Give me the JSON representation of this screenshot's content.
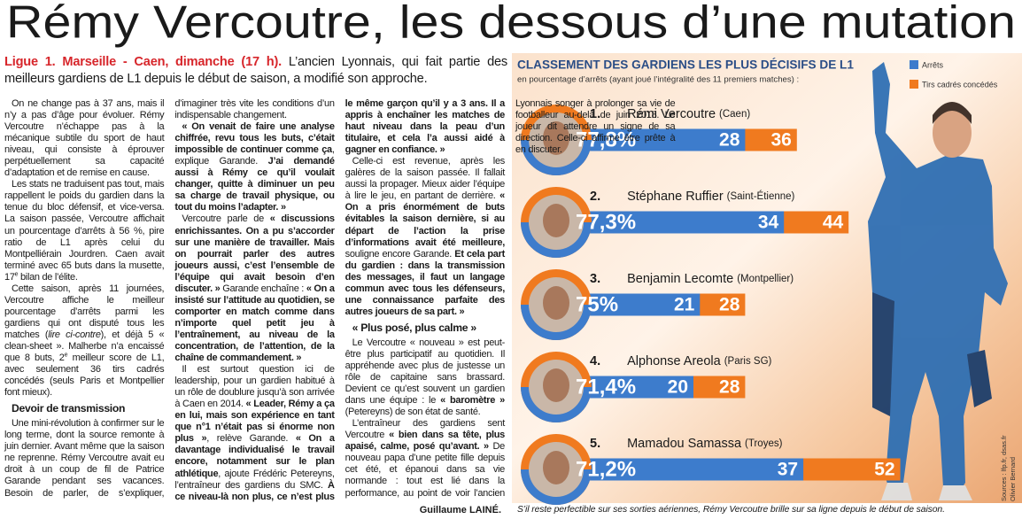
{
  "title": "Rémy Vercoutre, les dessous d’une mutation",
  "lead": {
    "kicker": "Ligue 1. Marseille - Caen, dimanche (17 h).",
    "text": "L’ancien Lyonnais, qui fait partie des meilleurs gardiens de L1 depuis le début de saison, a modifié son approche."
  },
  "article": {
    "blocks": [
      {
        "runs": [
          {
            "text": "On ne change pas à 37 ans, mais il n’y a pas d’âge pour évoluer. Rémy Vercoutre n’échappe pas à la mécanique subtile du sport de haut niveau, qui consiste à éprouver perpétuellement sa capacité d’adaptation et de remise en cause."
          }
        ]
      },
      {
        "runs": [
          {
            "text": "Les stats ne traduisent pas tout, mais rappellent le poids du gardien dans la tenue du bloc défensif, et vice-versa. La saison passée, Vercoutre affichait un pourcentage d’arrêts à 56 %, pire ratio de L1 après celui du Montpelliérain Jourdren. Caen avait terminé avec 65 buts dans la musette, 17"
          },
          {
            "text": "e",
            "sup": true
          },
          {
            "text": " bilan de l’élite."
          }
        ]
      },
      {
        "runs": [
          {
            "text": "Cette saison, après 11 journées, Vercoutre affiche le meilleur pourcentage d’arrêts parmi les gardiens qui ont disputé tous les matches ("
          },
          {
            "text": "lire ci-contre",
            "italic": true
          },
          {
            "text": "), et déjà 5 « clean-sheet ». Malherbe n’a encaissé que 8 buts, 2"
          },
          {
            "text": "e",
            "sup": true
          },
          {
            "text": " meilleur score de L1, avec seulement 36 tirs cadrés concédés (seuls Paris et Montpellier font mieux)."
          }
        ]
      },
      {
        "heading": "Devoir de transmission"
      },
      {
        "runs": [
          {
            "text": "Une mini-révolution à confirmer sur le long terme, dont la source remonte à juin dernier. Avant même que la saison ne reprenne. Rémy Vercoutre avait eu droit à un coup de fil de Patrice Garande pendant ses vacances. Besoin de parler, de s’expliquer, d’imaginer très vite les conditions d’un indispensable changement."
          }
        ]
      },
      {
        "runs": [
          {
            "text": "« On venait de faire une analyse chiffrée, revu tous les buts, c’était impossible de continuer comme ça",
            "bold": true
          },
          {
            "text": ", explique Garande. "
          },
          {
            "text": "J’ai demandé aussi à Rémy ce qu’il voulait changer, quitte à diminuer un peu sa charge de travail physique, ou tout du moins l’adapter. »",
            "bold": true
          }
        ]
      },
      {
        "runs": [
          {
            "text": "Vercoutre parle de "
          },
          {
            "text": "« discussions enrichissantes. On a pu s’accorder sur une manière de travailler. Mais on pourrait parler des autres joueurs aussi, c’est l’ensemble de l’équipe qui avait besoin d’en discuter. »",
            "bold": true
          },
          {
            "text": " Garande enchaîne : "
          },
          {
            "text": "« On a insisté sur l’attitude au quotidien, se comporter en match comme dans n’importe quel petit jeu à l’entraînement, au niveau de la concentration, de l’attention, de la chaîne de commandement. »",
            "bold": true
          }
        ]
      },
      {
        "runs": [
          {
            "text": "Il est surtout question ici de leadership, pour un gardien habitué à un rôle de doublure jusqu’à son arrivée à Caen en 2014. "
          },
          {
            "text": "« Leader, Rémy a ça en lui, mais son expérience en tant que n°1 n’était pas si énorme non plus »",
            "bold": true
          },
          {
            "text": ", relève Garande. "
          },
          {
            "text": "« On a davantage individualisé le travail encore, notamment sur le plan athlétique",
            "bold": true
          },
          {
            "text": ", ajoute Frédéric Petereyns, l’entraîneur des gardiens du SMC. "
          },
          {
            "text": "À ce niveau-là non plus, ce n’est plus le même garçon qu’il y a 3 ans. Il a appris à enchaîner les matches de haut niveau dans la peau d’un titulaire, et cela l’a aussi aidé à gagner en confiance. »",
            "bold": true
          }
        ]
      },
      {
        "runs": [
          {
            "text": "Celle-ci est revenue, après les galères de la saison passée. Il fallait aussi la propager. Mieux aider l’équipe à lire le jeu, en partant de derrière. "
          },
          {
            "text": "« On a pris énormément de buts évitables la saison dernière, si au départ de l’action la prise d’informations avait été meilleure,",
            "bold": true
          },
          {
            "text": " souligne encore Garande. "
          },
          {
            "text": "Et cela part du gardien : dans la transmission des messages, il faut un langage commun avec tous les défenseurs, une connaissance parfaite des autres joueurs de sa part. »",
            "bold": true
          }
        ]
      },
      {
        "heading": "« Plus posé, plus calme »"
      },
      {
        "runs": [
          {
            "text": "Le Vercoutre « nouveau » est peut-être plus participatif au quotidien. Il appréhende avec plus de justesse un rôle de capitaine sans brassard. Devient ce qu’est souvent un gardien dans une équipe : le "
          },
          {
            "text": "« baromètre »",
            "bold": true
          },
          {
            "text": " (Petereyns) de son état de santé."
          }
        ]
      },
      {
        "runs": [
          {
            "text": "L’entraîneur des gardiens sent Vercoutre "
          },
          {
            "text": "« bien dans sa tête, plus apaisé, calme, posé qu’avant. »",
            "bold": true
          },
          {
            "text": " De nouveau papa d’une petite fille depuis cet été, et épanoui dans sa vie normande : tout est lié dans la performance, au point de voir l’ancien Lyonnais songer à prolonger sa vie de footballeur au-delà de juin 2018. Le joueur dit attendre un signe de sa direction. Celle-ci affirme être prête à en discuter."
          }
        ]
      }
    ],
    "signature": "Guillaume LAINÉ."
  },
  "infographic": {
    "title": "CLASSEMENT DES GARDIENS LES PLUS DÉCISIFS DE L1",
    "subtitle": "en pourcentage d’arrêts (ayant joué l’intégralité des 11 premiers matches) :",
    "legend": [
      "Arrêts",
      "Tirs cadrés concédés"
    ],
    "colors": {
      "saves": "#3d7ccc",
      "shots": "#f07a1f"
    },
    "rows": [
      {
        "rank": "1.",
        "name": "Rémi Vercoutre",
        "club": "(Caen)",
        "percent": "77,8%",
        "saves": 28,
        "shots": 36
      },
      {
        "rank": "2.",
        "name": "Stéphane Ruffier",
        "club": "(Saint-Étienne)",
        "percent": "77,3%",
        "saves": 34,
        "shots": 44
      },
      {
        "rank": "3.",
        "name": "Benjamin Lecomte",
        "club": "(Montpellier)",
        "percent": "75%",
        "saves": 21,
        "shots": 28
      },
      {
        "rank": "4.",
        "name": "Alphonse Areola",
        "club": "(Paris SG)",
        "percent": "71,4%",
        "saves": 20,
        "shots": 28
      },
      {
        "rank": "5.",
        "name": "Mamadou Samassa",
        "club": "(Troyes)",
        "percent": "71,2%",
        "saves": 37,
        "shots": 52
      }
    ],
    "credits": [
      "Sources : lfp.fr, dsas.fr",
      "Olivier Bernard"
    ]
  },
  "caption": "S’il reste perfectible sur ses sorties aériennes, Rémy Vercoutre brille sur sa ligne depuis le début de saison."
}
